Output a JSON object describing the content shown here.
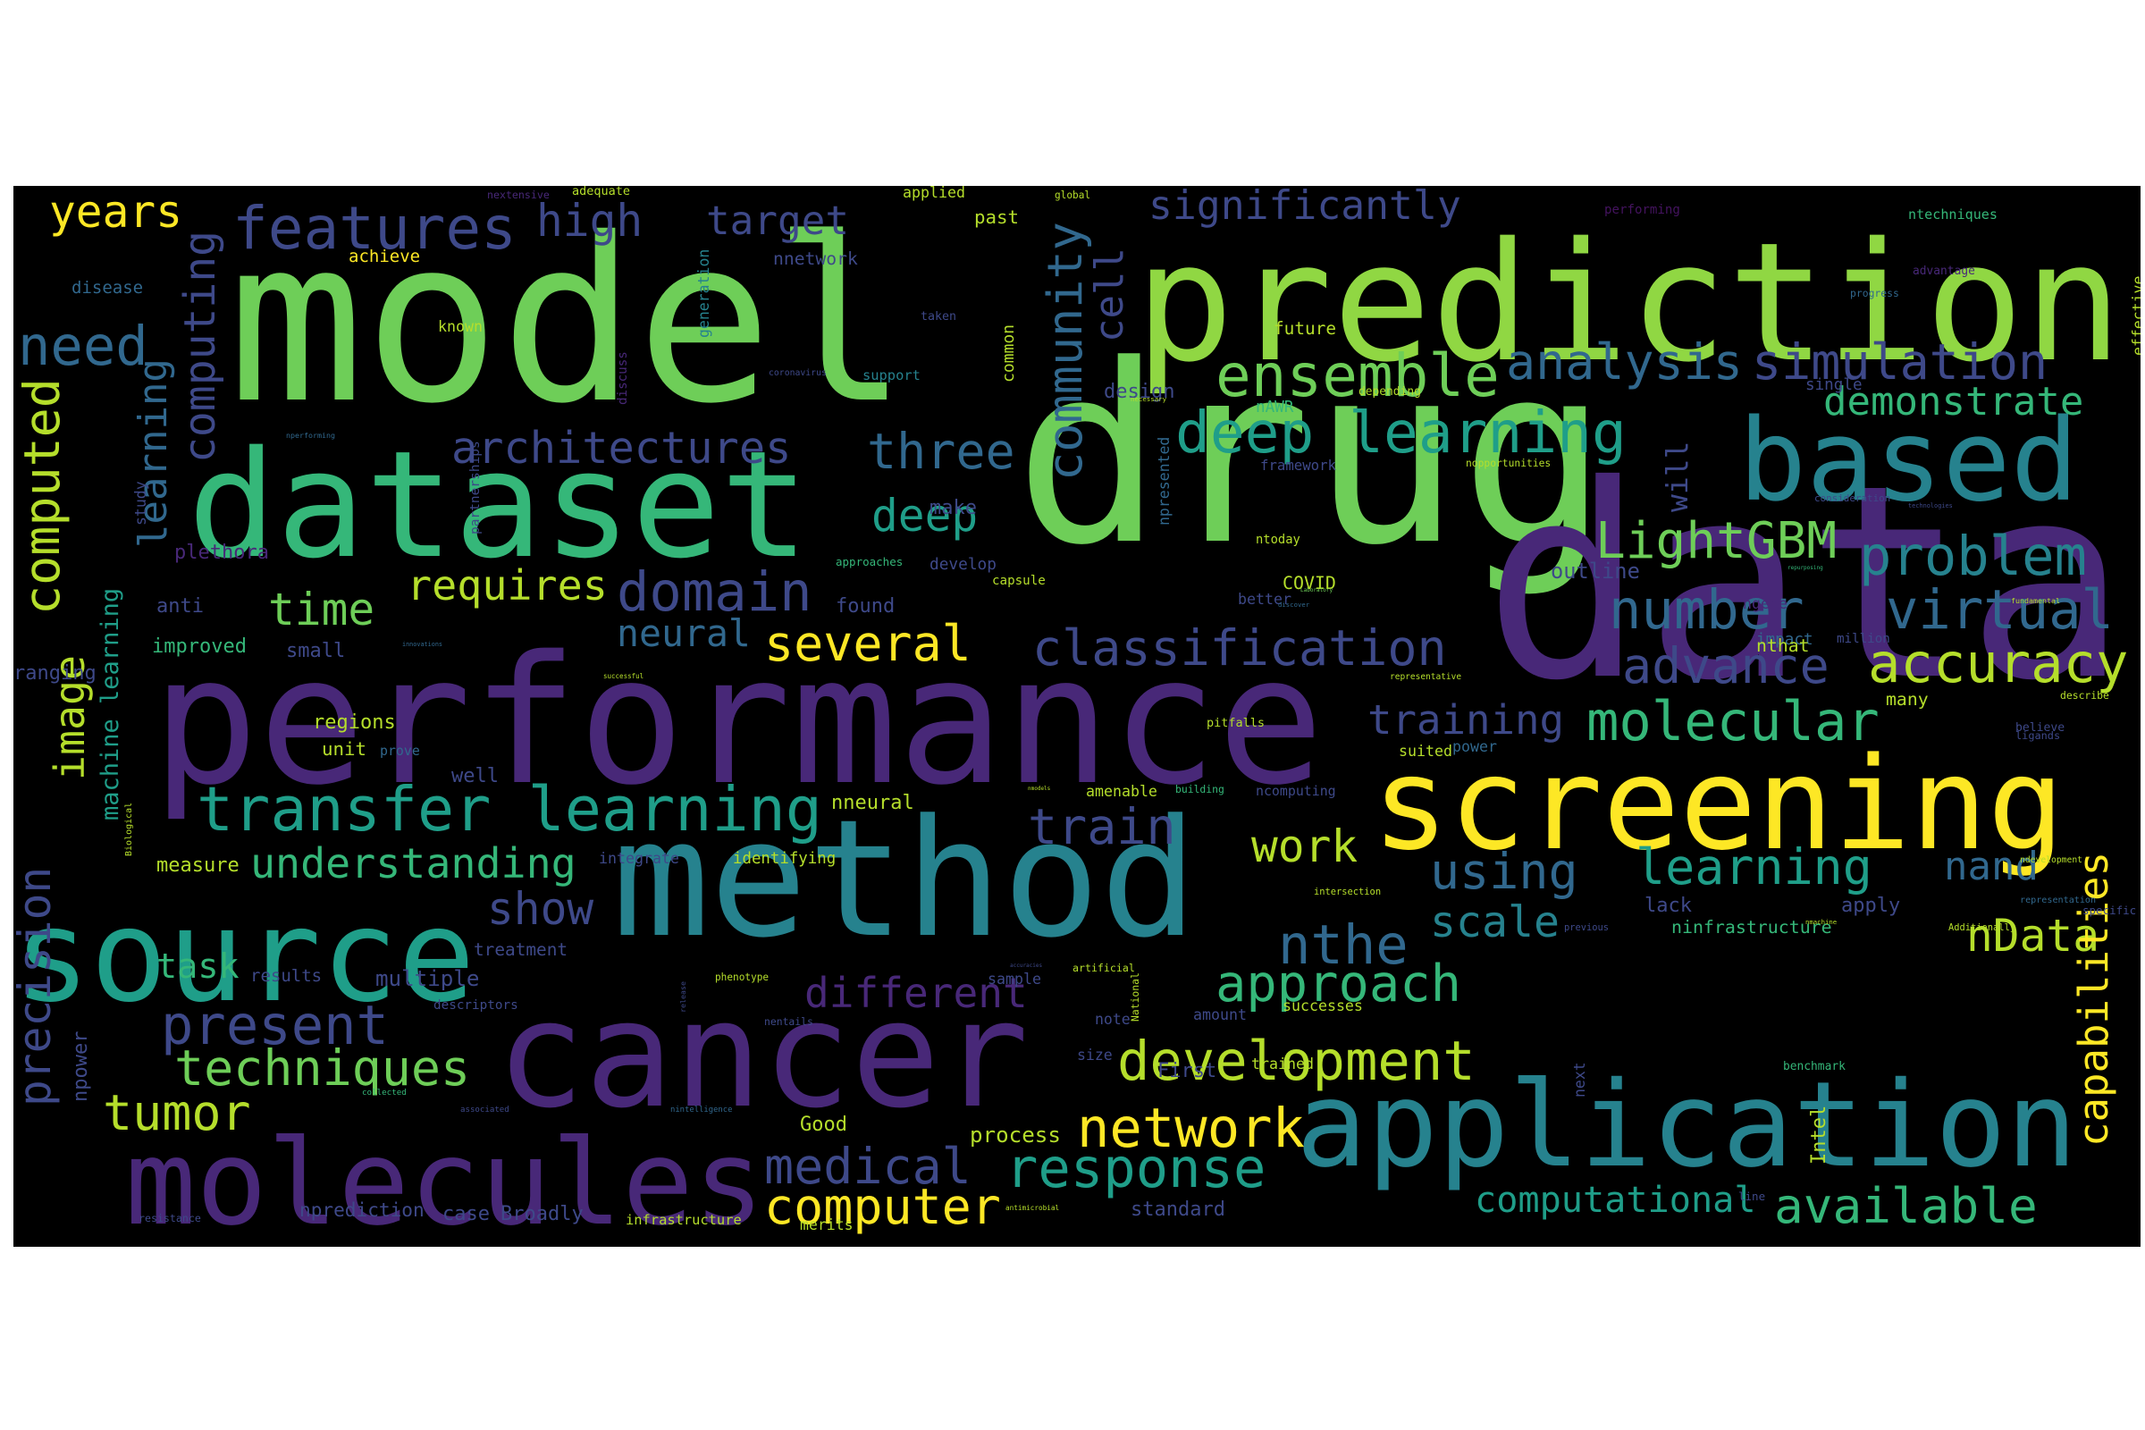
{
  "palette": {
    "background": "#000000",
    "page": "#ffffff",
    "deep-purple": "#44135f",
    "purple": "#482878",
    "indigo": "#3e4989",
    "slate-blue": "#31688e",
    "teal-blue": "#26828e",
    "teal": "#1f9e89",
    "sea-green": "#35b779",
    "green": "#6ece58",
    "light-green": "#90d743",
    "lime": "#b5de2b",
    "yellow": "#fde725"
  },
  "words": [
    {
      "text": "model",
      "color": "#6ece58"
    },
    {
      "text": "drug",
      "color": "#6ece58"
    },
    {
      "text": "data",
      "color": "#482878"
    },
    {
      "text": "prediction",
      "color": "#90d743"
    },
    {
      "text": "performance",
      "color": "#482878"
    },
    {
      "text": "method",
      "color": "#26828e"
    },
    {
      "text": "cancer",
      "color": "#482878"
    },
    {
      "text": "dataset",
      "color": "#35b779"
    },
    {
      "text": "screening",
      "color": "#fde725"
    },
    {
      "text": "application",
      "color": "#26828e"
    },
    {
      "text": "source",
      "color": "#1f9e89"
    },
    {
      "text": "molecules",
      "color": "#482878"
    },
    {
      "text": "based",
      "color": "#26828e"
    },
    {
      "text": "transfer learning",
      "color": "#1f9e89"
    },
    {
      "text": "features",
      "color": "#3e4989"
    },
    {
      "text": "ensemble",
      "color": "#6ece58"
    },
    {
      "text": "deep learning",
      "color": "#1f9e89"
    },
    {
      "text": "classification",
      "color": "#3e4989"
    },
    {
      "text": "development",
      "color": "#b5de2b"
    },
    {
      "text": "accuracy",
      "color": "#b5de2b"
    },
    {
      "text": "problem",
      "color": "#26828e"
    },
    {
      "text": "virtual",
      "color": "#31688e"
    },
    {
      "text": "molecular",
      "color": "#35b779"
    },
    {
      "text": "LightGBM",
      "color": "#6ece58"
    },
    {
      "text": "advance",
      "color": "#3e4989"
    },
    {
      "text": "analysis",
      "color": "#31688e"
    },
    {
      "text": "simulation",
      "color": "#3e4989"
    },
    {
      "text": "number",
      "color": "#31688e"
    },
    {
      "text": "response",
      "color": "#1f9e89"
    },
    {
      "text": "network",
      "color": "#fde725"
    },
    {
      "text": "approach",
      "color": "#35b779"
    },
    {
      "text": "available",
      "color": "#35b779"
    },
    {
      "text": "computer",
      "color": "#fde725"
    },
    {
      "text": "medical",
      "color": "#3e4989"
    },
    {
      "text": "present",
      "color": "#3e4989"
    },
    {
      "text": "techniques",
      "color": "#6ece58"
    },
    {
      "text": "tumor",
      "color": "#b5de2b"
    },
    {
      "text": "train",
      "color": "#3e4989"
    },
    {
      "text": "using",
      "color": "#31688e"
    },
    {
      "text": "learning",
      "color": "#1f9e89"
    },
    {
      "text": "time",
      "color": "#6ece58"
    },
    {
      "text": "domain",
      "color": "#3e4989"
    },
    {
      "text": "several",
      "color": "#fde725"
    },
    {
      "text": "understanding",
      "color": "#35b779"
    },
    {
      "text": "architectures",
      "color": "#3e4989"
    },
    {
      "text": "three",
      "color": "#31688e"
    },
    {
      "text": "deep",
      "color": "#1f9e89"
    },
    {
      "text": "high",
      "color": "#3e4989"
    },
    {
      "text": "target",
      "color": "#3e4989"
    },
    {
      "text": "need",
      "color": "#31688e"
    },
    {
      "text": "years",
      "color": "#fde725"
    },
    {
      "text": "requires",
      "color": "#b5de2b"
    },
    {
      "text": "neural",
      "color": "#31688e"
    },
    {
      "text": "different",
      "color": "#482878"
    },
    {
      "text": "nthe",
      "color": "#31688e"
    },
    {
      "text": "scale",
      "color": "#26828e"
    },
    {
      "text": "work",
      "color": "#b5de2b"
    },
    {
      "text": "show",
      "color": "#3e4989"
    },
    {
      "text": "task",
      "color": "#35b779"
    },
    {
      "text": "training",
      "color": "#3e4989"
    },
    {
      "text": "nData",
      "color": "#b5de2b"
    },
    {
      "text": "nand",
      "color": "#31688e"
    },
    {
      "text": "demonstrate",
      "color": "#35b779"
    },
    {
      "text": "computational",
      "color": "#1f9e89"
    },
    {
      "text": "significantly",
      "color": "#3e4989"
    },
    {
      "text": "capabilities",
      "color": "#fde725"
    },
    {
      "text": "community",
      "color": "#31688e"
    },
    {
      "text": "computing",
      "color": "#3e4989"
    },
    {
      "text": "computed",
      "color": "#b5de2b"
    },
    {
      "text": "learning",
      "color": "#31688e"
    },
    {
      "text": "machine learning",
      "color": "#1f9e89"
    },
    {
      "text": "precision",
      "color": "#3e4989"
    },
    {
      "text": "image",
      "color": "#b5de2b"
    },
    {
      "text": "cell",
      "color": "#3e4989"
    },
    {
      "text": "will",
      "color": "#3e4989"
    },
    {
      "text": "applied",
      "color": "#b5de2b"
    },
    {
      "text": "past",
      "color": "#b5de2b"
    },
    {
      "text": "global",
      "color": "#b5de2b"
    },
    {
      "text": "performing",
      "color": "#44135f"
    },
    {
      "text": "ntechniques",
      "color": "#35b779"
    },
    {
      "text": "nextensive",
      "color": "#482878"
    },
    {
      "text": "adequate",
      "color": "#b5de2b"
    },
    {
      "text": "achieve",
      "color": "#fde725"
    },
    {
      "text": "nnetwork",
      "color": "#3e4989"
    },
    {
      "text": "disease",
      "color": "#31688e"
    },
    {
      "text": "generation",
      "color": "#26828e"
    },
    {
      "text": "taken",
      "color": "#3e4989"
    },
    {
      "text": "progress",
      "color": "#31688e"
    },
    {
      "text": "advantage",
      "color": "#482878"
    },
    {
      "text": "discovery",
      "color": "#482878"
    },
    {
      "text": "effective",
      "color": "#b5de2b"
    },
    {
      "text": "known",
      "color": "#b5de2b"
    },
    {
      "text": "discuss",
      "color": "#482878"
    },
    {
      "text": "coronavirus",
      "color": "#3e4989"
    },
    {
      "text": "common",
      "color": "#b5de2b"
    },
    {
      "text": "future",
      "color": "#b5de2b"
    },
    {
      "text": "support",
      "color": "#26828e"
    },
    {
      "text": "design",
      "color": "#3e4989"
    },
    {
      "text": "necessary",
      "color": "#b5de2b"
    },
    {
      "text": "nAWR",
      "color": "#35b779"
    },
    {
      "text": "depending",
      "color": "#b5de2b"
    },
    {
      "text": "single",
      "color": "#3e4989"
    },
    {
      "text": "nperforming",
      "color": "#31688e"
    },
    {
      "text": "study",
      "color": "#3e4989"
    },
    {
      "text": "partnerships",
      "color": "#3e4989"
    },
    {
      "text": "npresented",
      "color": "#31688e"
    },
    {
      "text": "framework",
      "color": "#3e4989"
    },
    {
      "text": "nopportunities",
      "color": "#b5de2b"
    },
    {
      "text": "consideration",
      "color": "#3e4989"
    },
    {
      "text": "technologies",
      "color": "#3e4989"
    },
    {
      "text": "make",
      "color": "#3e4989"
    },
    {
      "text": "ntoday",
      "color": "#b5de2b"
    },
    {
      "text": "plethora",
      "color": "#482878"
    },
    {
      "text": "approaches",
      "color": "#35b779"
    },
    {
      "text": "develop",
      "color": "#3e4989"
    },
    {
      "text": "capsule",
      "color": "#b5de2b"
    },
    {
      "text": "COVID",
      "color": "#b5de2b"
    },
    {
      "text": "outline",
      "color": "#3e4989"
    },
    {
      "text": "repurposing",
      "color": "#35b779"
    },
    {
      "text": "anti",
      "color": "#3e4989"
    },
    {
      "text": "Laboratory",
      "color": "#6ece58"
    },
    {
      "text": "better",
      "color": "#3e4989"
    },
    {
      "text": "found",
      "color": "#3e4989"
    },
    {
      "text": "discover",
      "color": "#31688e"
    },
    {
      "text": "ngene",
      "color": "#482878"
    },
    {
      "text": "impact",
      "color": "#31688e"
    },
    {
      "text": "fundamental",
      "color": "#b5de2b"
    },
    {
      "text": "improved",
      "color": "#35b779"
    },
    {
      "text": "small",
      "color": "#3e4989"
    },
    {
      "text": "innovations",
      "color": "#31688e"
    },
    {
      "text": "nthat",
      "color": "#b5de2b"
    },
    {
      "text": "million",
      "color": "#3e4989"
    },
    {
      "text": "ranging",
      "color": "#3e4989"
    },
    {
      "text": "successful",
      "color": "#b5de2b"
    },
    {
      "text": "representative",
      "color": "#b5de2b"
    },
    {
      "text": "many",
      "color": "#b5de2b"
    },
    {
      "text": "describe",
      "color": "#b5de2b"
    },
    {
      "text": "regions",
      "color": "#b5de2b"
    },
    {
      "text": "pitfalls",
      "color": "#b5de2b"
    },
    {
      "text": "believe",
      "color": "#3e4989"
    },
    {
      "text": "unit",
      "color": "#b5de2b"
    },
    {
      "text": "prove",
      "color": "#31688e"
    },
    {
      "text": "suited",
      "color": "#b5de2b"
    },
    {
      "text": "power",
      "color": "#31688e"
    },
    {
      "text": "ligands",
      "color": "#3e4989"
    },
    {
      "text": "well",
      "color": "#3e4989"
    },
    {
      "text": "nmodels",
      "color": "#b5de2b"
    },
    {
      "text": "amenable",
      "color": "#b5de2b"
    },
    {
      "text": "building",
      "color": "#35b779"
    },
    {
      "text": "ncomputing",
      "color": "#3e4989"
    },
    {
      "text": "Biological",
      "color": "#b5de2b"
    },
    {
      "text": "nneural",
      "color": "#b5de2b"
    },
    {
      "text": "measure",
      "color": "#b5de2b"
    },
    {
      "text": "integrate",
      "color": "#3e4989"
    },
    {
      "text": "identifying",
      "color": "#b5de2b"
    },
    {
      "text": "combining",
      "color": "#3e4989"
    },
    {
      "text": "specific",
      "color": "#3e4989"
    },
    {
      "text": "representation",
      "color": "#31688e"
    },
    {
      "text": "intersection",
      "color": "#b5de2b"
    },
    {
      "text": "apply",
      "color": "#3e4989"
    },
    {
      "text": "ndevelopment",
      "color": "#b5de2b"
    },
    {
      "text": "lack",
      "color": "#3e4989"
    },
    {
      "text": "treatment",
      "color": "#3e4989"
    },
    {
      "text": "previous",
      "color": "#3e4989"
    },
    {
      "text": "ninfrastructure",
      "color": "#35b779"
    },
    {
      "text": "nmachine",
      "color": "#b5de2b"
    },
    {
      "text": "Additionally",
      "color": "#b5de2b"
    },
    {
      "text": "results",
      "color": "#3e4989"
    },
    {
      "text": "multiple",
      "color": "#3e4989"
    },
    {
      "text": "artificial",
      "color": "#b5de2b"
    },
    {
      "text": "sample",
      "color": "#3e4989"
    },
    {
      "text": "accuracies",
      "color": "#3e4989"
    },
    {
      "text": "phenotype",
      "color": "#b5de2b"
    },
    {
      "text": "release",
      "color": "#3e4989"
    },
    {
      "text": "descriptors",
      "color": "#3e4989"
    },
    {
      "text": "successes",
      "color": "#b5de2b"
    },
    {
      "text": "note",
      "color": "#3e4989"
    },
    {
      "text": "amount",
      "color": "#3e4989"
    },
    {
      "text": "National",
      "color": "#b5de2b"
    },
    {
      "text": "next",
      "color": "#3e4989"
    },
    {
      "text": "npower",
      "color": "#3e4989"
    },
    {
      "text": "nentails",
      "color": "#3e4989"
    },
    {
      "text": "size",
      "color": "#3e4989"
    },
    {
      "text": "First",
      "color": "#3e4989"
    },
    {
      "text": "trained",
      "color": "#b5de2b"
    },
    {
      "text": "benchmark",
      "color": "#35b779"
    },
    {
      "text": "collected",
      "color": "#35b779"
    },
    {
      "text": "associated",
      "color": "#3e4989"
    },
    {
      "text": "nintelligence",
      "color": "#31688e"
    },
    {
      "text": "Good",
      "color": "#b5de2b"
    },
    {
      "text": "process",
      "color": "#b5de2b"
    },
    {
      "text": "Intel",
      "color": "#b5de2b"
    },
    {
      "text": "nprediction",
      "color": "#3e4989"
    },
    {
      "text": "case",
      "color": "#3e4989"
    },
    {
      "text": "Broadly",
      "color": "#3e4989"
    },
    {
      "text": "antimicrobial",
      "color": "#b5de2b"
    },
    {
      "text": "standard",
      "color": "#3e4989"
    },
    {
      "text": "line",
      "color": "#3e4989"
    },
    {
      "text": "resistance",
      "color": "#3e4989"
    },
    {
      "text": "infrastructure",
      "color": "#b5de2b"
    },
    {
      "text": "merits",
      "color": "#b5de2b"
    }
  ]
}
